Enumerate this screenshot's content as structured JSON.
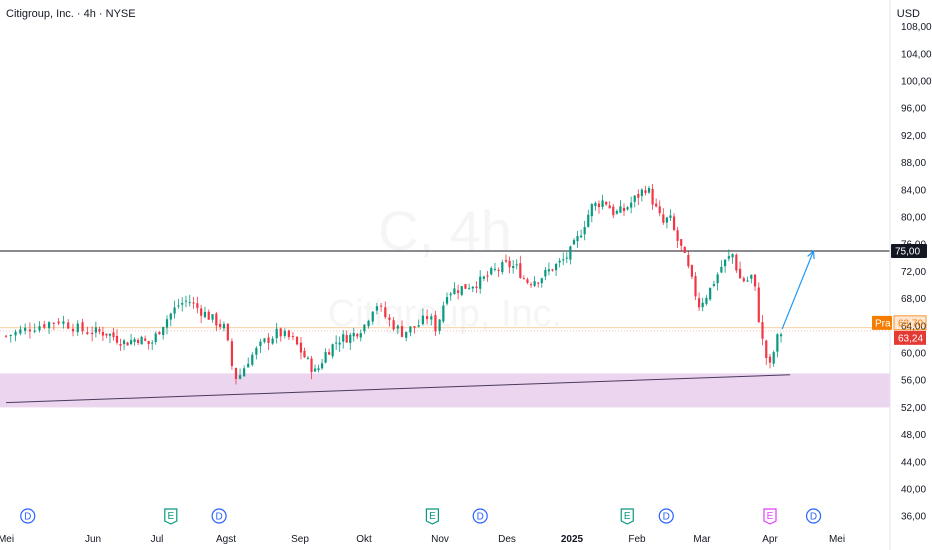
{
  "header": {
    "title": "Citigroup, Inc. · 4h · NYSE",
    "currency": "USD"
  },
  "watermark": {
    "line1": "C, 4h",
    "line2": "Citigroup, Inc."
  },
  "colors": {
    "up": "#089981",
    "down": "#f23645",
    "zone": "#e1bee7",
    "arrow": "#2196f3",
    "hline": "#131722",
    "pre_tag": "#f57c00",
    "last_tag": "#e53935"
  },
  "chart_data": {
    "type": "candlestick",
    "timeframe": "4h",
    "y_ticks": [
      "36,00",
      "40,00",
      "44,00",
      "48,00",
      "52,00",
      "56,00",
      "60,00",
      "64,00",
      "68,00",
      "72,00",
      "76,00",
      "80,00",
      "84,00",
      "88,00",
      "92,00",
      "96,00",
      "100,00",
      "104,00",
      "108,00"
    ],
    "ylim": [
      35,
      109
    ],
    "x_ticks": [
      {
        "label": "Mei",
        "bold": false
      },
      {
        "label": "Jun",
        "bold": false
      },
      {
        "label": "Jul",
        "bold": false
      },
      {
        "label": "Agst",
        "bold": false
      },
      {
        "label": "Sep",
        "bold": false
      },
      {
        "label": "Okt",
        "bold": false
      },
      {
        "label": "Nov",
        "bold": false
      },
      {
        "label": "Des",
        "bold": false
      },
      {
        "label": "2025",
        "bold": true
      },
      {
        "label": "Feb",
        "bold": false
      },
      {
        "label": "Mar",
        "bold": false
      },
      {
        "label": "Apr",
        "bold": false
      },
      {
        "label": "Mei",
        "bold": false
      }
    ],
    "price_path": [
      [
        0,
        62.5
      ],
      [
        3,
        63.8
      ],
      [
        6,
        64.8
      ],
      [
        9,
        63.2
      ],
      [
        12,
        63
      ],
      [
        15,
        61.5
      ],
      [
        17,
        62.2
      ],
      [
        19,
        61.2
      ],
      [
        21,
        64.5
      ],
      [
        23,
        67
      ],
      [
        24.5,
        67.8
      ],
      [
        26,
        66.5
      ],
      [
        28,
        65
      ],
      [
        30,
        63.5
      ],
      [
        30.5,
        59
      ],
      [
        31.5,
        56
      ],
      [
        33,
        59
      ],
      [
        35,
        61.5
      ],
      [
        37,
        63
      ],
      [
        39,
        62
      ],
      [
        41,
        59
      ],
      [
        42.5,
        57
      ],
      [
        44,
        60
      ],
      [
        46,
        62
      ],
      [
        48,
        62.5
      ],
      [
        50,
        64
      ],
      [
        51.5,
        67.5
      ],
      [
        53,
        65
      ],
      [
        55,
        63
      ],
      [
        57,
        64
      ],
      [
        58.5,
        65.5
      ],
      [
        59.5,
        63.5
      ],
      [
        61,
        69
      ],
      [
        63,
        69.5
      ],
      [
        66,
        70.5
      ],
      [
        68,
        72
      ],
      [
        70,
        73
      ],
      [
        71.5,
        72.5
      ],
      [
        73,
        70.5
      ],
      [
        75,
        71
      ],
      [
        77,
        72.5
      ],
      [
        78.5,
        73.5
      ],
      [
        79.5,
        74.5
      ],
      [
        81,
        77
      ],
      [
        83,
        81.5
      ],
      [
        85,
        82.5
      ],
      [
        86.5,
        80.5
      ],
      [
        88,
        81
      ],
      [
        90,
        83
      ],
      [
        91.5,
        84.5
      ],
      [
        93,
        81
      ],
      [
        94,
        79
      ],
      [
        95,
        80
      ],
      [
        96,
        77
      ],
      [
        97,
        75
      ],
      [
        98,
        72
      ],
      [
        99.5,
        67
      ],
      [
        101,
        69
      ],
      [
        103,
        73
      ],
      [
        104.5,
        74.5
      ],
      [
        105.5,
        71
      ],
      [
        106.5,
        70.5
      ],
      [
        107.5,
        71.5
      ],
      [
        108.5,
        64
      ],
      [
        109.2,
        60
      ],
      [
        110,
        58
      ],
      [
        111,
        62
      ],
      [
        112,
        63.5
      ]
    ],
    "last_candle": {
      "date": "2025-04-10",
      "close": 63.24
    },
    "price_labels": [
      {
        "name": "Pra",
        "value": "63,70",
        "price": 63.7
      },
      {
        "name": "last",
        "value": "63,24",
        "price": 63.24
      }
    ],
    "horizontal_line": {
      "price": 75.0,
      "label": "75,00"
    },
    "support_zone": {
      "low": 52,
      "high": 57
    },
    "trendline": {
      "from": {
        "month": 0,
        "price": 52.7
      },
      "to": {
        "month": 113,
        "price": 56.8
      }
    },
    "projection_arrow": {
      "from": {
        "month": 111.8,
        "price": 63.5
      },
      "to": {
        "month": 116.5,
        "price": 75.0
      }
    },
    "events": [
      {
        "type": "D",
        "month": 2.5
      },
      {
        "type": "E",
        "month": 22
      },
      {
        "type": "D",
        "month": 29
      },
      {
        "type": "E",
        "month": 59
      },
      {
        "type": "D",
        "month": 66
      },
      {
        "type": "E",
        "month": 88.5
      },
      {
        "type": "D",
        "month": 94.5
      },
      {
        "type": "E",
        "month": 110
      },
      {
        "type": "D",
        "month": 116.5
      }
    ],
    "grid": false,
    "legend": "none"
  }
}
